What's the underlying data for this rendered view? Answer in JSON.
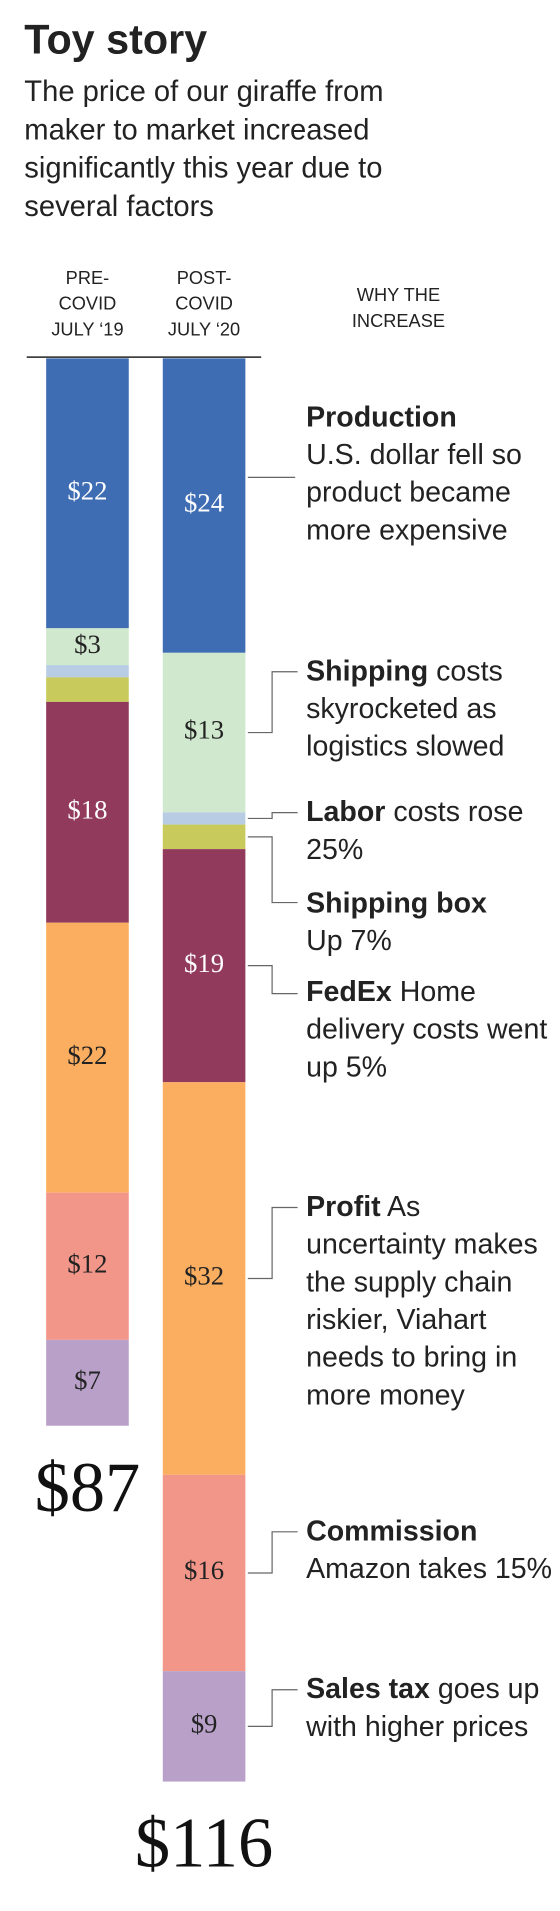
{
  "chart_data": {
    "type": "stacked-bar",
    "title": "Toy story",
    "subtitle": "The price of our giraffe from maker to market increased significantly this year due to several factors",
    "categories": [
      "PRE-\nCOVID\nJULY ‘19",
      "POST-\nCOVID\nJULY ‘20"
    ],
    "annotation_header": "WHY THE\nINCREASE",
    "totals": [
      87,
      116
    ],
    "total_labels": [
      "$87",
      "$116"
    ],
    "series": [
      {
        "name": "Production",
        "description": "U.S. dollar fell so product became more expensive",
        "color": "#3f6db4",
        "values": [
          22,
          24
        ],
        "value_labels": [
          "$22",
          "$24"
        ]
      },
      {
        "name": "Shipping",
        "description": "costs skyrocketed as logistics slowed",
        "color": "#d0e8cd",
        "values": [
          3,
          13
        ],
        "value_labels": [
          "$3",
          "$13"
        ]
      },
      {
        "name": "Labor",
        "description": "costs rose 25%",
        "color": "#b8cde4",
        "values": [
          1,
          1
        ],
        "value_labels": [
          null,
          null
        ]
      },
      {
        "name": "Shipping box",
        "description": "Up 7%",
        "color": "#c8cb5b",
        "values": [
          2,
          2
        ],
        "value_labels": [
          null,
          null
        ]
      },
      {
        "name": "FedEx",
        "description": "Home delivery costs went up 5%",
        "color": "#913a5b",
        "values": [
          18,
          19
        ],
        "value_labels": [
          "$18",
          "$19"
        ]
      },
      {
        "name": "Profit",
        "description": "As uncertainty makes the supply chain riskier, Viahart needs to bring in more money",
        "color": "#fbae60",
        "values": [
          22,
          32
        ],
        "value_labels": [
          "$22",
          "$32"
        ]
      },
      {
        "name": "Commission",
        "description": "Amazon takes 15%",
        "color": "#f3968a",
        "values": [
          12,
          16
        ],
        "value_labels": [
          "$12",
          "$16"
        ]
      },
      {
        "name": "Sales tax",
        "description": "goes up with higher prices",
        "color": "#b9a0c8",
        "values": [
          7,
          9
        ],
        "value_labels": [
          "$7",
          "$9"
        ]
      }
    ]
  }
}
